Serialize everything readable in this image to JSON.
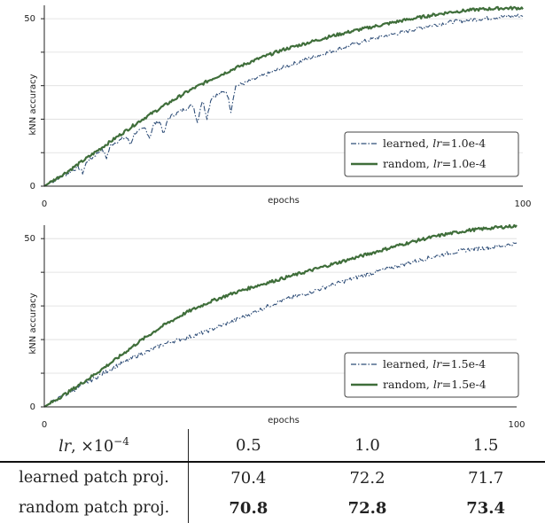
{
  "chart_data": [
    {
      "type": "line",
      "xlabel": "epochs",
      "ylabel": "kNN accuracy",
      "xlim": [
        0,
        100
      ],
      "ylim": [
        0,
        54
      ],
      "xticks": [
        "0",
        "100"
      ],
      "yticks": [
        "0",
        "50"
      ],
      "grid": true,
      "legend_position": "bottom-right",
      "series": [
        {
          "name": "learned",
          "lr": "1.0e-4",
          "style": "dash-dot",
          "color": "#2f4e78",
          "anchors": [
            [
              0,
              0
            ],
            [
              5,
              4
            ],
            [
              8,
              6.5
            ],
            [
              10,
              8.5
            ],
            [
              12,
              11
            ],
            [
              14,
              12.5
            ],
            [
              16,
              13.8
            ],
            [
              18,
              15.5
            ],
            [
              20,
              16.5
            ],
            [
              22,
              18
            ],
            [
              24,
              19.3
            ],
            [
              26,
              20.5
            ],
            [
              28,
              22
            ],
            [
              30,
              23.5
            ],
            [
              32,
              24.8
            ],
            [
              34,
              26
            ],
            [
              36,
              27.2
            ],
            [
              38,
              28.3
            ],
            [
              40,
              29.8
            ],
            [
              45,
              32.5
            ],
            [
              50,
              35.5
            ],
            [
              55,
              38
            ],
            [
              60,
              40.3
            ],
            [
              65,
              42.5
            ],
            [
              70,
              44.5
            ],
            [
              75,
              46
            ],
            [
              80,
              47.8
            ],
            [
              85,
              49
            ],
            [
              90,
              49.8
            ],
            [
              95,
              50.5
            ],
            [
              100,
              51
            ]
          ],
          "dips": [
            [
              8,
              4
            ],
            [
              13,
              8.5
            ],
            [
              18,
              12.5
            ],
            [
              22,
              14.5
            ],
            [
              25,
              15.5
            ],
            [
              32,
              19
            ],
            [
              34,
              20.5
            ],
            [
              39,
              22.5
            ]
          ]
        },
        {
          "name": "random",
          "lr": "1.0e-4",
          "style": "solid",
          "color": "#3f6e3a",
          "anchors": [
            [
              0,
              0
            ],
            [
              5,
              4.5
            ],
            [
              10,
              9.5
            ],
            [
              15,
              14.5
            ],
            [
              20,
              19.5
            ],
            [
              25,
              24
            ],
            [
              30,
              28.3
            ],
            [
              35,
              32
            ],
            [
              40,
              35.3
            ],
            [
              45,
              38.2
            ],
            [
              50,
              40.8
            ],
            [
              55,
              42.8
            ],
            [
              60,
              44.8
            ],
            [
              65,
              46.5
            ],
            [
              70,
              48
            ],
            [
              75,
              49.5
            ],
            [
              80,
              50.8
            ],
            [
              85,
              52
            ],
            [
              90,
              52.7
            ],
            [
              95,
              53.1
            ],
            [
              100,
              53.2
            ]
          ]
        }
      ]
    },
    {
      "type": "line",
      "xlabel": "epochs",
      "ylabel": "kNN accuracy",
      "xlim": [
        0,
        100
      ],
      "ylim": [
        0,
        54
      ],
      "xticks": [
        "0",
        "100"
      ],
      "yticks": [
        "0",
        "50"
      ],
      "grid": true,
      "legend_position": "bottom-right",
      "series": [
        {
          "name": "learned",
          "lr": "1.5e-4",
          "style": "dash-dot",
          "color": "#2f4e78",
          "anchors": [
            [
              0,
              0
            ],
            [
              5,
              4
            ],
            [
              10,
              8
            ],
            [
              15,
              12
            ],
            [
              18,
              14
            ],
            [
              20,
              15.5
            ],
            [
              22,
              16.5
            ],
            [
              25,
              18.5
            ],
            [
              28,
              19.8
            ],
            [
              30,
              20.5
            ],
            [
              33,
              21.8
            ],
            [
              35,
              22.8
            ],
            [
              38,
              24.5
            ],
            [
              40,
              25.5
            ],
            [
              45,
              28.5
            ],
            [
              50,
              31.5
            ],
            [
              55,
              33.5
            ],
            [
              60,
              35.8
            ],
            [
              65,
              38
            ],
            [
              70,
              40
            ],
            [
              75,
              42
            ],
            [
              80,
              43.8
            ],
            [
              85,
              45.5
            ],
            [
              90,
              46.8
            ],
            [
              95,
              47.5
            ],
            [
              100,
              48.5
            ]
          ]
        },
        {
          "name": "random",
          "lr": "1.5e-4",
          "style": "solid",
          "color": "#3f6e3a",
          "anchors": [
            [
              0,
              0
            ],
            [
              5,
              4.3
            ],
            [
              10,
              9
            ],
            [
              15,
              14
            ],
            [
              20,
              19.3
            ],
            [
              25,
              24
            ],
            [
              30,
              28
            ],
            [
              35,
              31.2
            ],
            [
              40,
              33.8
            ],
            [
              45,
              36
            ],
            [
              50,
              38
            ],
            [
              55,
              40
            ],
            [
              60,
              42
            ],
            [
              65,
              44
            ],
            [
              70,
              46
            ],
            [
              75,
              48
            ],
            [
              80,
              49.8
            ],
            [
              85,
              51.3
            ],
            [
              90,
              52.5
            ],
            [
              95,
              53.2
            ],
            [
              100,
              53.8
            ]
          ]
        }
      ]
    }
  ],
  "legend": {
    "top": [
      {
        "name": "learned",
        "lr_label": "lr",
        "lr_value": "=1.0e-4"
      },
      {
        "name": "random",
        "lr_label": "lr",
        "lr_value": "=1.0e-4"
      }
    ],
    "bottom": [
      {
        "name": "learned",
        "lr_label": "lr",
        "lr_value": "=1.5e-4"
      },
      {
        "name": "random",
        "lr_label": "lr",
        "lr_value": "=1.5e-4"
      }
    ]
  },
  "table": {
    "header": {
      "label": "lr",
      "suffix": ", ×10",
      "exponent": "−4",
      "values": [
        "0.5",
        "1.0",
        "1.5"
      ]
    },
    "rows": [
      {
        "label": "learned patch proj.",
        "values": [
          "70.4",
          "72.2",
          "71.7"
        ],
        "bold": [
          false,
          false,
          false
        ]
      },
      {
        "label": "random patch proj.",
        "values": [
          "70.8",
          "72.8",
          "73.4"
        ],
        "bold": [
          true,
          true,
          true
        ]
      }
    ]
  }
}
